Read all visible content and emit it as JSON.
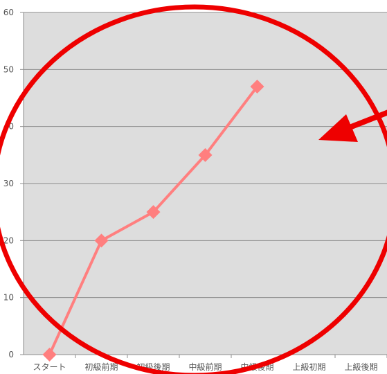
{
  "chart_data": {
    "type": "line",
    "title": "",
    "xlabel": "",
    "ylabel": "",
    "categories": [
      "スタート",
      "初級前期",
      "初級後期",
      "中級前期",
      "中級後期",
      "上級初期",
      "上級後期"
    ],
    "series": [
      {
        "values": [
          0,
          20,
          25,
          35,
          47,
          null,
          null
        ]
      }
    ],
    "ylim": [
      0,
      60
    ],
    "yticks": [
      0,
      10,
      20,
      30,
      40,
      50,
      60
    ],
    "grid": true,
    "legend": "none",
    "colors": {
      "plot_background": "#dddddd",
      "gridline": "#8c8c8c",
      "series_line": "#ff7f7f",
      "marker": "#ff7f7f",
      "annotation": "#ee0000"
    }
  },
  "annotations": [
    {
      "kind": "circle",
      "color": "#ee0000"
    },
    {
      "kind": "arrow",
      "color": "#ee0000"
    }
  ]
}
